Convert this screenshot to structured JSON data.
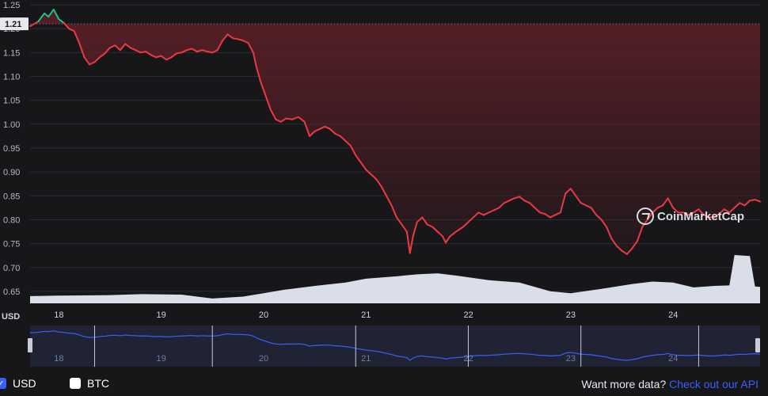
{
  "chart_data": {
    "type": "line",
    "title": "",
    "currency_axis_label": "USD",
    "y_ticks": [
      "0.65",
      "0.70",
      "0.75",
      "0.80",
      "0.85",
      "0.90",
      "0.95",
      "1.00",
      "1.05",
      "1.10",
      "1.15",
      "1.20",
      "1.25"
    ],
    "ylim": [
      0.625,
      1.25
    ],
    "x_ticks": [
      "18",
      "19",
      "20",
      "21",
      "22",
      "23",
      "24"
    ],
    "xlim": [
      17.72,
      24.85
    ],
    "current_price_label": "1.21",
    "open_price": 1.21,
    "colors": {
      "down": "#ea3943",
      "up": "#16c784",
      "area_top": "#5a1f26",
      "volume": "#d9dee8",
      "navigator": "#3861fb",
      "navigator_bg": "#1f2333"
    },
    "series": [
      {
        "points": [
          [
            17.72,
            1.205
          ],
          [
            17.8,
            1.215
          ],
          [
            17.86,
            1.232
          ],
          [
            17.9,
            1.225
          ],
          [
            17.95,
            1.24
          ],
          [
            18.0,
            1.22
          ],
          [
            18.05,
            1.212
          ],
          [
            18.1,
            1.2
          ],
          [
            18.15,
            1.195
          ],
          [
            18.2,
            1.17
          ],
          [
            18.25,
            1.14
          ],
          [
            18.3,
            1.125
          ],
          [
            18.35,
            1.13
          ],
          [
            18.4,
            1.14
          ],
          [
            18.45,
            1.148
          ],
          [
            18.5,
            1.16
          ],
          [
            18.55,
            1.165
          ],
          [
            18.6,
            1.155
          ],
          [
            18.65,
            1.168
          ],
          [
            18.7,
            1.16
          ],
          [
            18.75,
            1.155
          ],
          [
            18.8,
            1.15
          ],
          [
            18.85,
            1.152
          ],
          [
            18.9,
            1.145
          ],
          [
            18.95,
            1.14
          ],
          [
            19.0,
            1.143
          ],
          [
            19.05,
            1.135
          ],
          [
            19.1,
            1.14
          ],
          [
            19.15,
            1.148
          ],
          [
            19.2,
            1.15
          ],
          [
            19.25,
            1.155
          ],
          [
            19.3,
            1.158
          ],
          [
            19.35,
            1.152
          ],
          [
            19.4,
            1.155
          ],
          [
            19.45,
            1.152
          ],
          [
            19.5,
            1.15
          ],
          [
            19.55,
            1.155
          ],
          [
            19.6,
            1.175
          ],
          [
            19.65,
            1.188
          ],
          [
            19.7,
            1.18
          ],
          [
            19.75,
            1.178
          ],
          [
            19.8,
            1.175
          ],
          [
            19.85,
            1.17
          ],
          [
            19.9,
            1.15
          ],
          [
            19.93,
            1.12
          ],
          [
            19.97,
            1.09
          ],
          [
            20.02,
            1.06
          ],
          [
            20.07,
            1.03
          ],
          [
            20.12,
            1.01
          ],
          [
            20.17,
            1.005
          ],
          [
            20.22,
            1.012
          ],
          [
            20.28,
            1.01
          ],
          [
            20.34,
            1.015
          ],
          [
            20.4,
            1.005
          ],
          [
            20.45,
            0.975
          ],
          [
            20.5,
            0.985
          ],
          [
            20.55,
            0.99
          ],
          [
            20.6,
            0.995
          ],
          [
            20.65,
            0.99
          ],
          [
            20.7,
            0.98
          ],
          [
            20.75,
            0.975
          ],
          [
            20.8,
            0.965
          ],
          [
            20.85,
            0.955
          ],
          [
            20.9,
            0.935
          ],
          [
            20.95,
            0.92
          ],
          [
            21.0,
            0.905
          ],
          [
            21.05,
            0.895
          ],
          [
            21.1,
            0.885
          ],
          [
            21.15,
            0.87
          ],
          [
            21.2,
            0.85
          ],
          [
            21.25,
            0.83
          ],
          [
            21.3,
            0.805
          ],
          [
            21.35,
            0.79
          ],
          [
            21.4,
            0.775
          ],
          [
            21.43,
            0.73
          ],
          [
            21.46,
            0.765
          ],
          [
            21.5,
            0.795
          ],
          [
            21.55,
            0.805
          ],
          [
            21.6,
            0.79
          ],
          [
            21.65,
            0.785
          ],
          [
            21.7,
            0.775
          ],
          [
            21.75,
            0.765
          ],
          [
            21.78,
            0.752
          ],
          [
            21.82,
            0.765
          ],
          [
            21.88,
            0.775
          ],
          [
            21.95,
            0.785
          ],
          [
            22.0,
            0.795
          ],
          [
            22.05,
            0.805
          ],
          [
            22.1,
            0.815
          ],
          [
            22.15,
            0.81
          ],
          [
            22.2,
            0.815
          ],
          [
            22.25,
            0.82
          ],
          [
            22.3,
            0.825
          ],
          [
            22.35,
            0.835
          ],
          [
            22.4,
            0.84
          ],
          [
            22.45,
            0.845
          ],
          [
            22.5,
            0.848
          ],
          [
            22.55,
            0.84
          ],
          [
            22.6,
            0.835
          ],
          [
            22.65,
            0.825
          ],
          [
            22.7,
            0.815
          ],
          [
            22.75,
            0.812
          ],
          [
            22.8,
            0.805
          ],
          [
            22.85,
            0.81
          ],
          [
            22.9,
            0.815
          ],
          [
            22.95,
            0.855
          ],
          [
            23.0,
            0.865
          ],
          [
            23.05,
            0.85
          ],
          [
            23.1,
            0.835
          ],
          [
            23.15,
            0.83
          ],
          [
            23.2,
            0.825
          ],
          [
            23.25,
            0.81
          ],
          [
            23.3,
            0.8
          ],
          [
            23.35,
            0.785
          ],
          [
            23.4,
            0.76
          ],
          [
            23.45,
            0.745
          ],
          [
            23.5,
            0.735
          ],
          [
            23.55,
            0.728
          ],
          [
            23.6,
            0.74
          ],
          [
            23.65,
            0.755
          ],
          [
            23.7,
            0.785
          ],
          [
            23.75,
            0.8
          ],
          [
            23.8,
            0.815
          ],
          [
            23.85,
            0.825
          ],
          [
            23.9,
            0.83
          ],
          [
            23.95,
            0.845
          ],
          [
            24.0,
            0.825
          ],
          [
            24.05,
            0.815
          ],
          [
            24.1,
            0.815
          ],
          [
            24.15,
            0.81
          ],
          [
            24.2,
            0.815
          ],
          [
            24.25,
            0.822
          ],
          [
            24.3,
            0.81
          ],
          [
            24.35,
            0.805
          ],
          [
            24.4,
            0.805
          ],
          [
            24.45,
            0.812
          ],
          [
            24.5,
            0.822
          ],
          [
            24.55,
            0.815
          ],
          [
            24.6,
            0.825
          ],
          [
            24.65,
            0.835
          ],
          [
            24.7,
            0.83
          ],
          [
            24.75,
            0.84
          ],
          [
            24.8,
            0.842
          ],
          [
            24.85,
            0.838
          ]
        ]
      }
    ],
    "volume_points": [
      [
        17.72,
        0.15
      ],
      [
        18.0,
        0.16
      ],
      [
        18.5,
        0.17
      ],
      [
        18.8,
        0.19
      ],
      [
        19.2,
        0.18
      ],
      [
        19.5,
        0.1
      ],
      [
        19.8,
        0.14
      ],
      [
        20.0,
        0.21
      ],
      [
        20.2,
        0.28
      ],
      [
        20.5,
        0.36
      ],
      [
        20.8,
        0.43
      ],
      [
        21.0,
        0.51
      ],
      [
        21.3,
        0.56
      ],
      [
        21.5,
        0.6
      ],
      [
        21.7,
        0.62
      ],
      [
        21.9,
        0.57
      ],
      [
        22.2,
        0.48
      ],
      [
        22.5,
        0.43
      ],
      [
        22.8,
        0.25
      ],
      [
        23.0,
        0.21
      ],
      [
        23.3,
        0.3
      ],
      [
        23.6,
        0.4
      ],
      [
        23.8,
        0.45
      ],
      [
        24.0,
        0.43
      ],
      [
        24.2,
        0.33
      ],
      [
        24.4,
        0.36
      ],
      [
        24.55,
        0.37
      ],
      [
        24.6,
        1.0
      ],
      [
        24.75,
        0.98
      ],
      [
        24.8,
        0.35
      ],
      [
        24.85,
        0.34
      ]
    ],
    "watermark": "CoinMarketCap"
  },
  "footer": {
    "usd_label": "USD",
    "btc_label": "BTC",
    "api_prompt": "Want more data?",
    "api_link": "Check out our API"
  }
}
